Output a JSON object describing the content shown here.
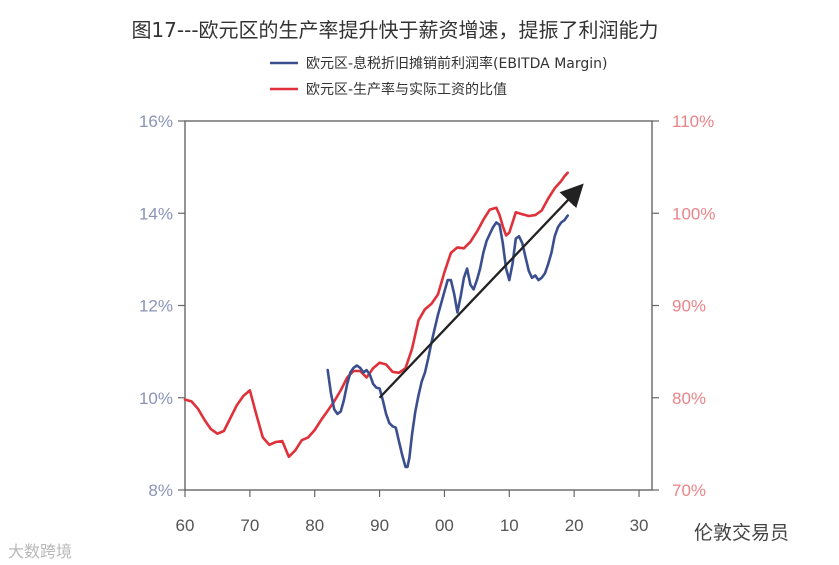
{
  "chart_data": {
    "type": "line",
    "title": "图17---欧元区的生产率提升快于薪资增速，提振了利润能力",
    "x_ticks": [
      "60",
      "70",
      "80",
      "90",
      "00",
      "10",
      "20",
      "30"
    ],
    "x_tick_years": [
      1960,
      1970,
      1980,
      1990,
      2000,
      2010,
      2020,
      2030
    ],
    "xlim": [
      1960,
      2032
    ],
    "left_axis": {
      "ticks": [
        "8%",
        "10%",
        "12%",
        "14%",
        "16%"
      ],
      "values": [
        8,
        10,
        12,
        14,
        16
      ],
      "ylim": [
        8,
        16
      ]
    },
    "right_axis": {
      "ticks": [
        "70%",
        "80%",
        "90%",
        "100%",
        "110%"
      ],
      "values": [
        70,
        80,
        90,
        100,
        110
      ],
      "ylim": [
        70,
        110
      ]
    },
    "series": [
      {
        "name": "欧元区-息税折旧摊销前利润率(EBITDA Margin)",
        "axis": "left",
        "color": "#3b4f8f",
        "x": [
          1982.0,
          1982.5,
          1983.0,
          1983.5,
          1984.0,
          1984.5,
          1985.0,
          1985.5,
          1986.0,
          1986.5,
          1987.0,
          1987.5,
          1988.0,
          1988.5,
          1989.0,
          1989.5,
          1990.0,
          1990.5,
          1991.0,
          1991.5,
          1992.0,
          1992.5,
          1993.0,
          1993.5,
          1994.0,
          1994.3,
          1994.6,
          1995.0,
          1995.5,
          1996.0,
          1996.5,
          1997.0,
          1997.5,
          1998.0,
          1998.5,
          1999.0,
          1999.5,
          2000.0,
          2000.5,
          2001.0,
          2001.5,
          2002.0,
          2002.5,
          2003.0,
          2003.5,
          2004.0,
          2004.5,
          2005.0,
          2005.5,
          2006.0,
          2006.5,
          2007.0,
          2007.5,
          2008.0,
          2008.5,
          2009.0,
          2009.5,
          2010.0,
          2010.5,
          2011.0,
          2011.5,
          2012.0,
          2012.5,
          2013.0,
          2013.5,
          2014.0,
          2014.5,
          2015.0,
          2015.5,
          2016.0,
          2016.5,
          2017.0,
          2017.5,
          2018.0,
          2018.5,
          2019.0
        ],
        "values": [
          10.6,
          10.1,
          9.75,
          9.65,
          9.7,
          9.95,
          10.3,
          10.55,
          10.65,
          10.7,
          10.65,
          10.55,
          10.6,
          10.5,
          10.3,
          10.22,
          10.2,
          9.95,
          9.65,
          9.45,
          9.38,
          9.35,
          9.05,
          8.75,
          8.5,
          8.5,
          8.7,
          9.2,
          9.7,
          10.05,
          10.35,
          10.55,
          10.85,
          11.2,
          11.5,
          11.8,
          12.05,
          12.3,
          12.55,
          12.55,
          12.25,
          11.85,
          12.2,
          12.6,
          12.8,
          12.45,
          12.35,
          12.55,
          12.8,
          13.15,
          13.4,
          13.55,
          13.7,
          13.8,
          13.75,
          13.35,
          12.8,
          12.55,
          12.9,
          13.45,
          13.5,
          13.35,
          13.05,
          12.75,
          12.6,
          12.65,
          12.55,
          12.6,
          12.7,
          12.9,
          13.15,
          13.5,
          13.7,
          13.8,
          13.85,
          13.95
        ]
      },
      {
        "name": "欧元区-生产率与实际工资的比值",
        "axis": "right",
        "color": "#e0313a",
        "x": [
          1960,
          1961,
          1962,
          1963,
          1964,
          1965,
          1966,
          1967,
          1968,
          1969,
          1970,
          1971,
          1972,
          1973,
          1974,
          1975,
          1976,
          1977,
          1978,
          1979,
          1980,
          1981,
          1982,
          1983,
          1984,
          1985,
          1986,
          1987,
          1988,
          1989,
          1990,
          1991,
          1992,
          1993,
          1994,
          1995,
          1996,
          1997,
          1998,
          1999,
          2000,
          2001,
          2002,
          2003,
          2004,
          2005,
          2006,
          2007,
          2008,
          2008.5,
          2009,
          2009.5,
          2010,
          2011,
          2012,
          2013,
          2014,
          2015,
          2016,
          2017,
          2018,
          2018.5,
          2019
        ],
        "values": [
          79.8,
          79.6,
          78.8,
          77.6,
          76.6,
          76.1,
          76.4,
          77.8,
          79.2,
          80.2,
          80.8,
          78.2,
          75.7,
          74.9,
          75.2,
          75.3,
          73.6,
          74.3,
          75.4,
          75.7,
          76.5,
          77.6,
          78.6,
          79.6,
          80.8,
          82.2,
          82.9,
          82.9,
          82.2,
          83.2,
          83.8,
          83.6,
          82.8,
          82.7,
          83.2,
          85.3,
          88.4,
          89.6,
          90.2,
          91.2,
          93.6,
          95.7,
          96.3,
          96.2,
          96.9,
          98.0,
          99.3,
          100.4,
          100.6,
          99.8,
          98.6,
          97.6,
          97.9,
          100.1,
          99.9,
          99.7,
          99.8,
          100.3,
          101.6,
          102.7,
          103.5,
          104.0,
          104.4
        ]
      }
    ],
    "annotation": {
      "type": "arrow",
      "from": {
        "x": 1990,
        "y_left": 10.0
      },
      "to": {
        "x": 2020.5,
        "y_left": 14.5
      }
    }
  },
  "watermarks": {
    "left": "大数跨境",
    "right": "伦敦交易员"
  }
}
